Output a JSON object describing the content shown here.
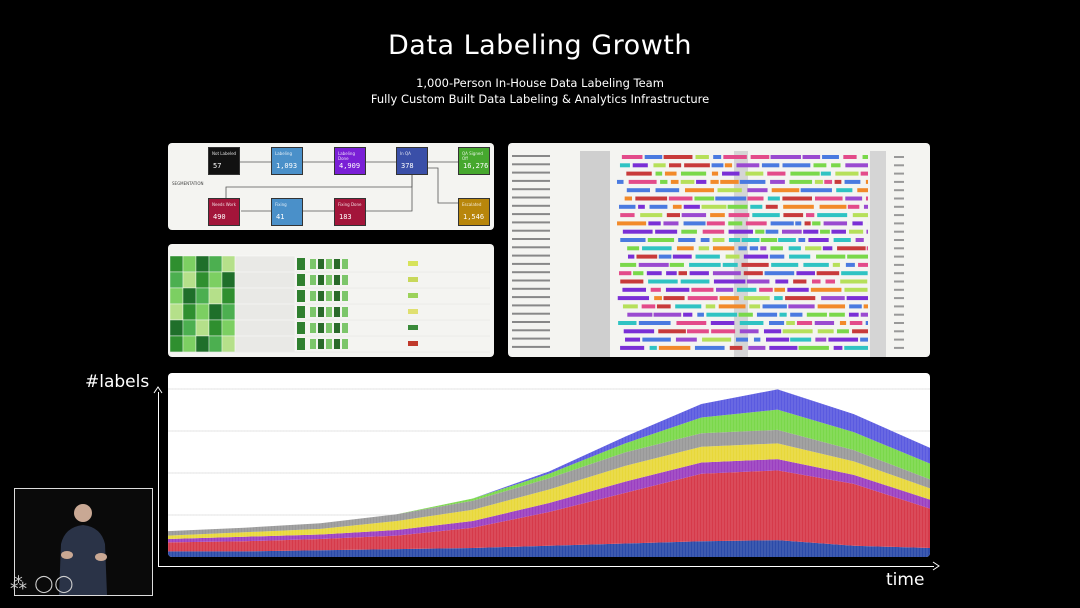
{
  "slide": {
    "title": "Data Labeling Growth",
    "subtitle_1": "1,000-Person In-House Data Labeling Team",
    "subtitle_2": "Fully Custom Built Data Labeling & Analytics Infrastructure"
  },
  "pipeline": {
    "row_label": "SEGMENTATION",
    "nodes": [
      {
        "label": "Not Labeled",
        "value": "57",
        "color": "#111111"
      },
      {
        "label": "Labeling",
        "value": "1,093",
        "color": "#4a90c9"
      },
      {
        "label": "Labeling Done",
        "value": "4,909",
        "color": "#7a1fd6"
      },
      {
        "label": "In QA",
        "value": "378",
        "color": "#3a4fa8"
      },
      {
        "label": "QA Signed Off",
        "value": "16,276",
        "color": "#46a82e"
      },
      {
        "label": "Needs Work",
        "value": "490",
        "color": "#a3153a"
      },
      {
        "label": "Fixing",
        "value": "41",
        "color": "#4a90c9"
      },
      {
        "label": "Fixing Done",
        "value": "183",
        "color": "#a3153a"
      },
      {
        "label": "Escalated",
        "value": "1,546",
        "color": "#b8860b"
      }
    ]
  },
  "chart": {
    "y_axis_label": "#labels",
    "x_axis_label": "time"
  },
  "colors": {
    "background": "#000000",
    "panel": "#f4f4f1",
    "chart_bg": "#ffffff"
  },
  "chart_data": {
    "type": "area",
    "stacked": true,
    "x": [
      0,
      10,
      20,
      30,
      40,
      50,
      60,
      70,
      80,
      90,
      100
    ],
    "series": [
      {
        "color": "#2b4aa8",
        "values": [
          5,
          5,
          6,
          7,
          8,
          10,
          12,
          14,
          15,
          10,
          8
        ]
      },
      {
        "color": "#d63a4a",
        "values": [
          8,
          9,
          10,
          12,
          18,
          30,
          45,
          60,
          62,
          55,
          35
        ]
      },
      {
        "color": "#9b3fc0",
        "values": [
          3,
          4,
          4,
          5,
          6,
          8,
          10,
          10,
          10,
          8,
          8
        ]
      },
      {
        "color": "#e8d83a",
        "values": [
          3,
          4,
          5,
          8,
          10,
          12,
          14,
          14,
          14,
          12,
          10
        ]
      },
      {
        "color": "#999999",
        "values": [
          4,
          4,
          5,
          6,
          8,
          10,
          12,
          12,
          12,
          10,
          8
        ]
      },
      {
        "color": "#7ad84a",
        "values": [
          0,
          0,
          0,
          0,
          2,
          4,
          8,
          14,
          18,
          16,
          14
        ]
      },
      {
        "color": "#5a5ae0",
        "values": [
          0,
          0,
          0,
          0,
          0,
          2,
          6,
          12,
          18,
          16,
          14
        ]
      }
    ],
    "grid": true
  }
}
